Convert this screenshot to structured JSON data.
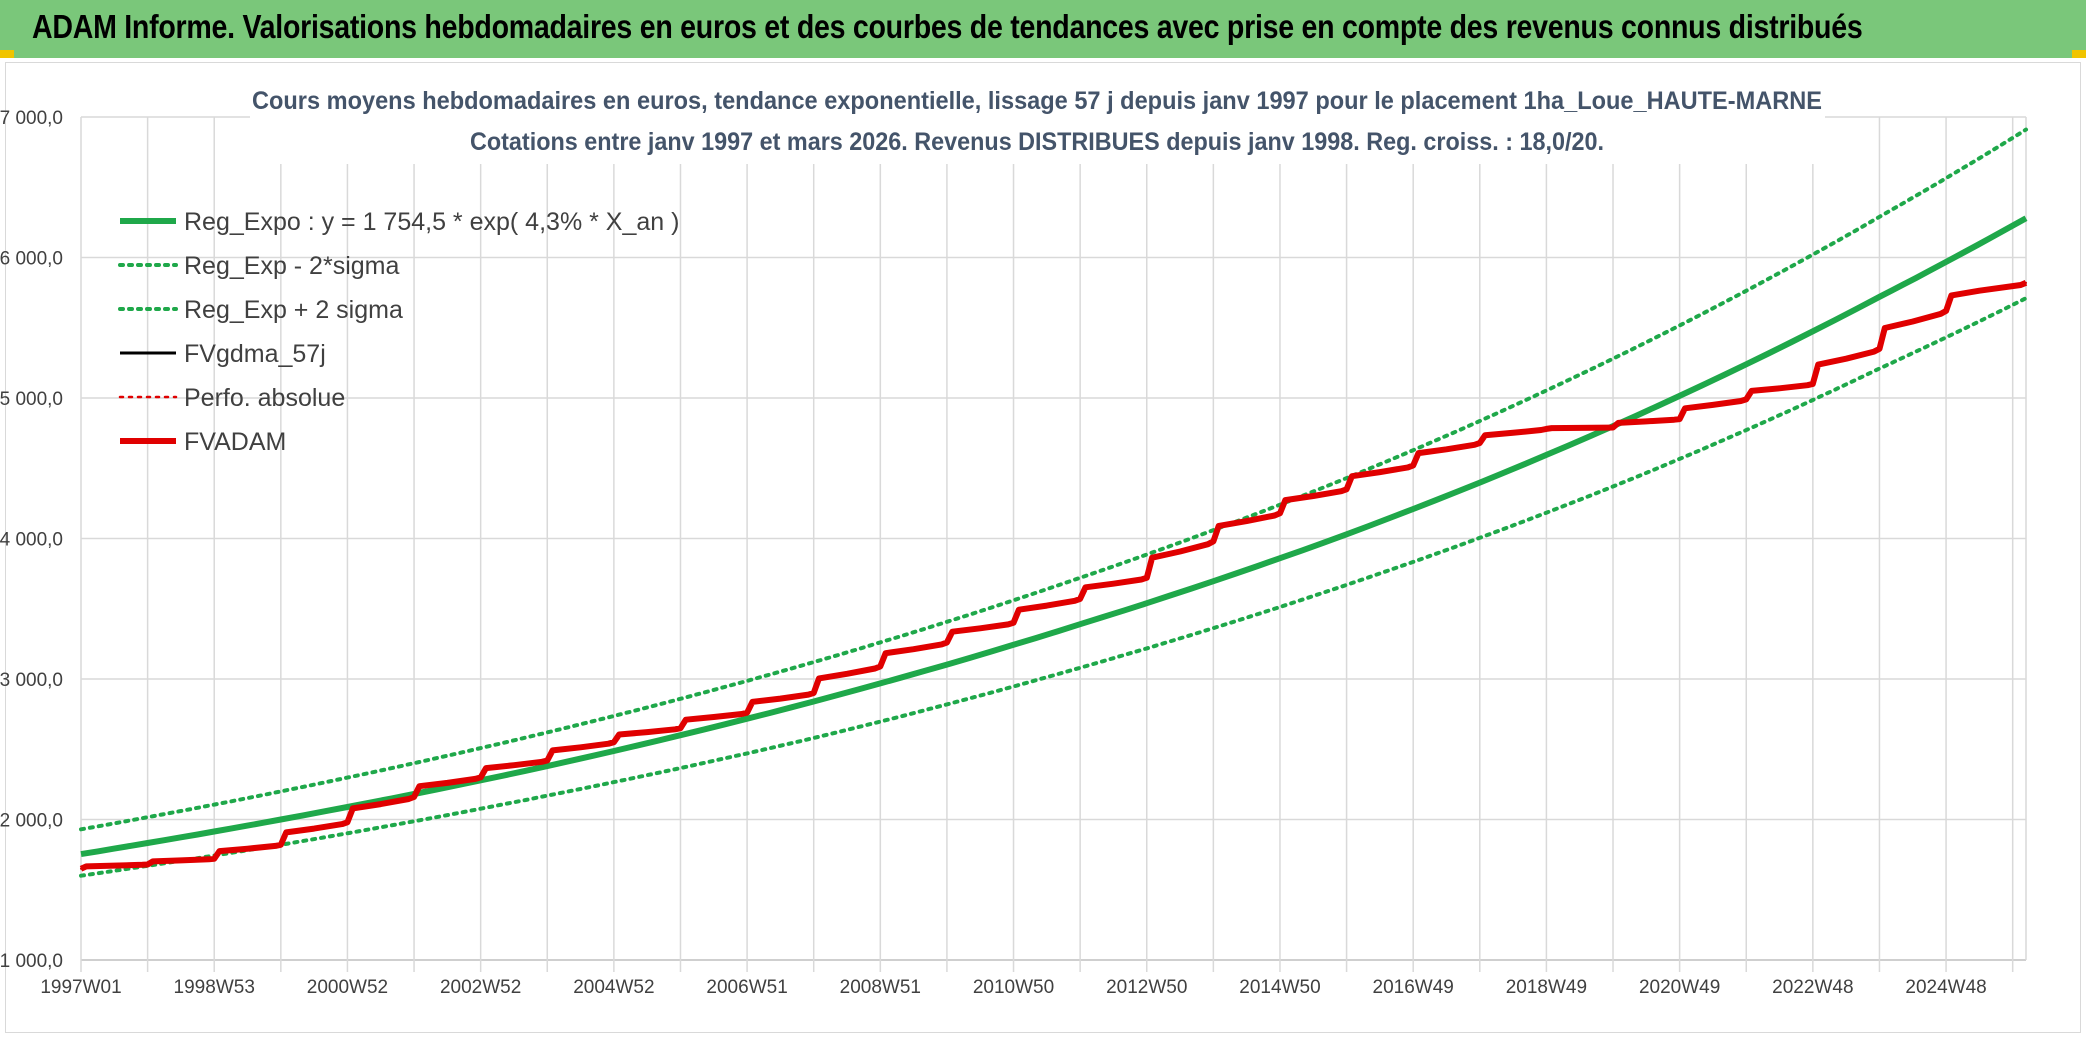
{
  "banner": {
    "title": "ADAM Informe. Valorisations hebdomadaires en euros et des courbes de tendances avec prise en compte des revenus connus distribués"
  },
  "colors": {
    "banner": "#7ac77a",
    "reg_expo": "#1fa84a",
    "band": "#1fa84a",
    "fvgdma": "#000000",
    "perfo": "#e00000",
    "fvadam": "#e00000",
    "title_text": "#44546a"
  },
  "chart_data": {
    "type": "line",
    "title": "Cours moyens hebdomadaires en euros, tendance exponentielle, lissage 57 j depuis janv 1997 pour le placement 1ha_Loue_HAUTE-MARNE",
    "subtitle": "Cotations entre janv 1997 et mars 2026. Revenus DISTRIBUES depuis janv 1998. Reg. croiss. : 18,0/20.",
    "xlabel": "",
    "ylabel": "",
    "x_tick_labels": [
      "1997W01",
      "1998W53",
      "2000W52",
      "2002W52",
      "2004W52",
      "2006W51",
      "2008W51",
      "2010W50",
      "2012W50",
      "2014W50",
      "2016W49",
      "2018W49",
      "2020W49",
      "2022W48",
      "2024W48"
    ],
    "x_range": [
      1997.0,
      2026.2
    ],
    "ylim": [
      1000,
      7000
    ],
    "y_tick_labels": [
      "1 000,0",
      "2 000,0",
      "3 000,0",
      "4 000,0",
      "5 000,0",
      "6 000,0",
      "7 000,0"
    ],
    "grid": true,
    "legend_position": "top-left",
    "series": [
      {
        "name": "Reg_Expo : y = 1 754,5 * exp( 4,3% *  X_an )",
        "style": "solid-thick",
        "color": "#1fa84a",
        "x": [
          1997,
          2000,
          2004,
          2008,
          2012,
          2016,
          2020,
          2024,
          2026.2
        ],
        "y": [
          1754,
          2000,
          2380,
          2840,
          3390,
          4030,
          4800,
          5720,
          6280
        ]
      },
      {
        "name": "Reg_Exp - 2*sigma",
        "style": "dotted",
        "color": "#1fa84a",
        "x": [
          1997,
          2000,
          2004,
          2008,
          2012,
          2016,
          2020,
          2024,
          2026.2
        ],
        "y": [
          1600,
          1820,
          2170,
          2580,
          3080,
          3670,
          4370,
          5210,
          5710
        ]
      },
      {
        "name": "Reg_Exp + 2 sigma",
        "style": "dotted",
        "color": "#1fa84a",
        "x": [
          1997,
          2000,
          2004,
          2008,
          2012,
          2016,
          2020,
          2024,
          2026.2
        ],
        "y": [
          1930,
          2200,
          2620,
          3120,
          3720,
          4430,
          5280,
          6290,
          6910
        ]
      },
      {
        "name": "FVgdma_57j",
        "style": "solid",
        "color": "#000000",
        "x": [
          1997,
          1998,
          1999,
          2000,
          2001,
          2002,
          2003,
          2004,
          2005,
          2006,
          2007,
          2008,
          2009,
          2010,
          2011,
          2012,
          2013,
          2014,
          2015,
          2016,
          2017,
          2018,
          2019,
          2020,
          2021,
          2022,
          2023,
          2024,
          2025,
          2026.2
        ],
        "y": [
          1650,
          1680,
          1720,
          1820,
          1980,
          2160,
          2300,
          2420,
          2550,
          2650,
          2760,
          2900,
          3090,
          3260,
          3400,
          3570,
          3720,
          3980,
          4180,
          4350,
          4520,
          4680,
          4780,
          4790,
          4850,
          4990,
          5100,
          5350,
          5620,
          5820
        ]
      },
      {
        "name": "Perfo. absolue",
        "style": "dotted",
        "color": "#e00000",
        "x": [
          1997,
          1998,
          1999,
          2000,
          2001,
          2002,
          2003,
          2004,
          2005,
          2006,
          2007,
          2008,
          2009,
          2010,
          2011,
          2012,
          2013,
          2014,
          2015,
          2016,
          2017,
          2018,
          2019,
          2020,
          2021,
          2022,
          2023,
          2024,
          2025,
          2026.2
        ],
        "y": [
          1650,
          1680,
          1720,
          1820,
          1980,
          2160,
          2300,
          2420,
          2550,
          2650,
          2760,
          2900,
          3090,
          3260,
          3400,
          3570,
          3720,
          3980,
          4180,
          4350,
          4520,
          4680,
          4780,
          4790,
          4850,
          4990,
          5100,
          5350,
          5620,
          5820
        ]
      },
      {
        "name": "FVADAM",
        "style": "solid-thick",
        "color": "#e00000",
        "x": [
          1997,
          1998,
          1999,
          2000,
          2001,
          2002,
          2003,
          2004,
          2005,
          2006,
          2007,
          2008,
          2009,
          2010,
          2011,
          2012,
          2013,
          2014,
          2015,
          2016,
          2017,
          2018,
          2019,
          2020,
          2021,
          2022,
          2023,
          2024,
          2025,
          2026.2
        ],
        "y": [
          1650,
          1680,
          1720,
          1820,
          1980,
          2160,
          2300,
          2420,
          2550,
          2650,
          2760,
          2900,
          3090,
          3260,
          3400,
          3570,
          3720,
          3980,
          4180,
          4350,
          4520,
          4680,
          4780,
          4790,
          4850,
          4990,
          5100,
          5350,
          5620,
          5820
        ]
      }
    ]
  }
}
